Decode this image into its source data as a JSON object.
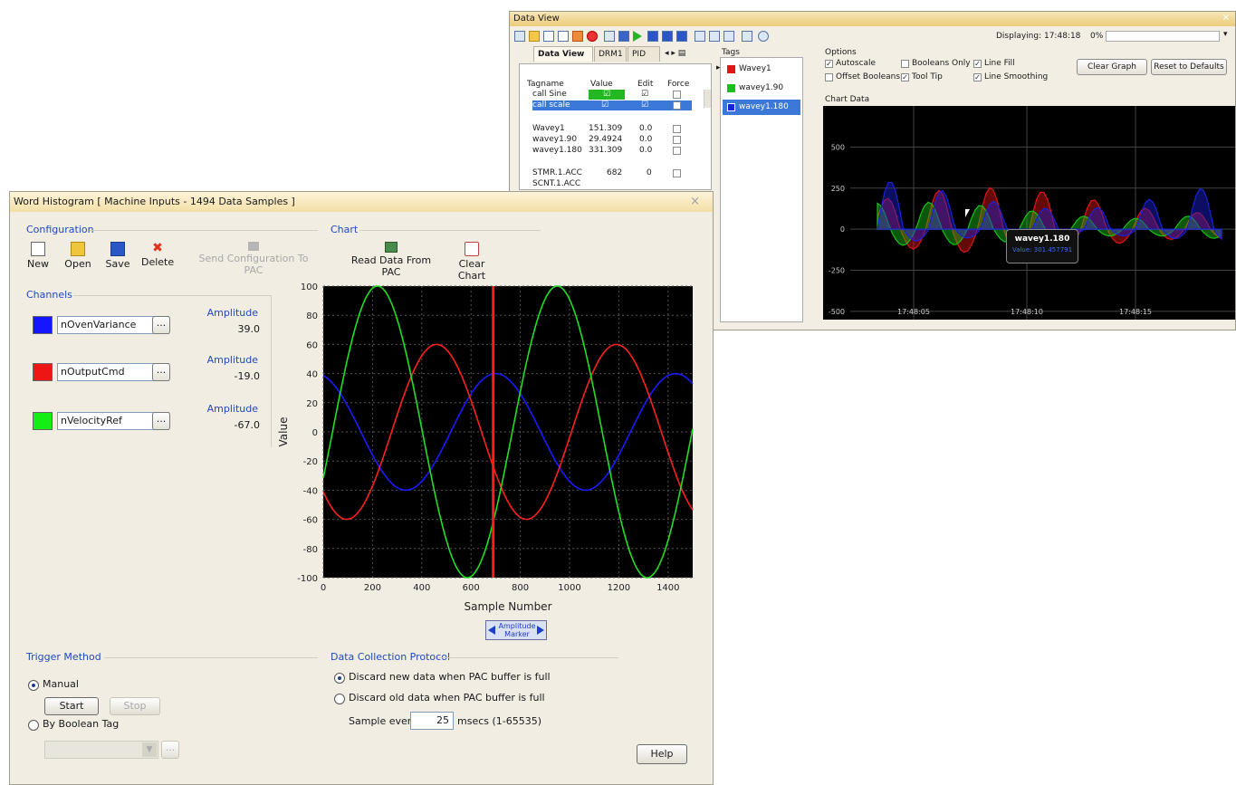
{
  "data_view": {
    "title": "Data View",
    "close_glyph": "×",
    "displaying": "Displaying: 17:48:18",
    "progress_text": "0%",
    "progress_fraction": 0.0,
    "tabs": [
      "Data View 1 ×",
      "DRM1",
      "PID W",
      "◂ ▸ ▤"
    ],
    "grid_headers": [
      "Tagname",
      "Value",
      "Edit",
      "Force"
    ],
    "grid_rows": [
      {
        "tag": "call Sine",
        "value": "☑",
        "edit": "☑",
        "force": ""
      },
      {
        "tag": "call scale",
        "value": "☑",
        "edit": "☑",
        "force": ""
      },
      {
        "tag": "Wavey1",
        "value": "151.309",
        "edit": "0.0",
        "force": ""
      },
      {
        "tag": "wavey1.90",
        "value": "29.4924",
        "edit": "0.0",
        "force": ""
      },
      {
        "tag": "wavey1.180",
        "value": "331.309",
        "edit": "0.0",
        "force": ""
      },
      {
        "tag": "STMR.1.ACC",
        "value": "682",
        "edit": "0",
        "force": ""
      },
      {
        "tag": "SCNT.1.ACC",
        "value": "",
        "edit": "",
        "force": ""
      }
    ],
    "tags_label": "Tags",
    "tags": [
      {
        "name": "Wavey1",
        "color": "#e01515"
      },
      {
        "name": "wavey1.90",
        "color": "#19c019"
      },
      {
        "name": "wavey1.180",
        "color": "#1a22d8"
      }
    ],
    "options_label": "Options",
    "options": {
      "autoscale": "Autoscale",
      "offset_booleans": "Offset Booleans",
      "booleans_only": "Booleans Only",
      "tool_tip": "Tool Tip",
      "line_fill": "Line Fill",
      "line_smoothing": "Line Smoothing"
    },
    "clear_graph": "Clear Graph",
    "reset_defaults": "Reset to Defaults",
    "chart_data_label": "Chart Data",
    "tooltip_title": "wavey1.180",
    "tooltip_value": "Value: 301.457791"
  },
  "word_histogram": {
    "title": "Word Histogram [ Machine Inputs - 1494 Data Samples ]",
    "close_glyph": "×",
    "configuration_label": "Configuration",
    "chart_label": "Chart",
    "tools": {
      "new": "New",
      "open": "Open",
      "save": "Save",
      "delete": "Delete",
      "send": "Send Configuration To PAC",
      "read": "Read Data From PAC",
      "clear": "Clear Chart"
    },
    "channels_label": "Channels",
    "channels": [
      {
        "name": "nOvenVariance",
        "color": "#1515ff",
        "amp_label": "Amplitude",
        "amp": "39.0"
      },
      {
        "name": "nOutputCmd",
        "color": "#ee1515",
        "amp_label": "Amplitude",
        "amp": "-19.0"
      },
      {
        "name": "nVelocityRef",
        "color": "#15ee15",
        "amp_label": "Amplitude",
        "amp": "-67.0"
      }
    ],
    "dots": "...",
    "marker_label": "Amplitude Marker",
    "trigger_label": "Trigger Method",
    "manual": "Manual",
    "start": "Start",
    "stop": "Stop",
    "by_boolean": "By Boolean Tag",
    "protocol_label": "Data Collection Protocol",
    "discard_new": "Discard new data when PAC buffer is full",
    "discard_old": "Discard old data when PAC buffer is full",
    "sample_every": "Sample every",
    "sample_value": "25",
    "sample_units": "msecs (1-65535)",
    "help": "Help"
  },
  "chart_data": [
    {
      "type": "line",
      "xlabel": "Sample Number",
      "ylabel": "Value",
      "xlim": [
        0,
        1500
      ],
      "ylim": [
        -100,
        100
      ],
      "xticks": [
        0,
        200,
        400,
        600,
        800,
        1000,
        1200,
        1400
      ],
      "yticks": [
        100,
        80,
        60,
        40,
        20,
        0,
        -20,
        -40,
        -60,
        -80,
        -100
      ],
      "marker_x": 690,
      "series": [
        {
          "name": "nOvenVariance",
          "color": "#1a1aff",
          "amplitude": 40,
          "period": 730,
          "peak_at": 700
        },
        {
          "name": "nOutputCmd",
          "color": "#ff2020",
          "amplitude": 60,
          "period": 730,
          "peak_at": 460
        },
        {
          "name": "nVelocityRef",
          "color": "#20e020",
          "amplitude": 100,
          "period": 730,
          "peak_at": 220
        }
      ]
    },
    {
      "type": "area",
      "xlabel": "",
      "ylabel": "",
      "ylim": [
        -550,
        750
      ],
      "yticks": [
        500,
        250,
        0,
        -250,
        -500
      ],
      "xticks": [
        "17:48:05",
        "17:48:10",
        "17:48:15"
      ],
      "series": [
        {
          "name": "Wavey1",
          "color": "#e01515"
        },
        {
          "name": "wavey1.90",
          "color": "#19c019"
        },
        {
          "name": "wavey1.180",
          "color": "#1a22d8"
        }
      ]
    }
  ]
}
